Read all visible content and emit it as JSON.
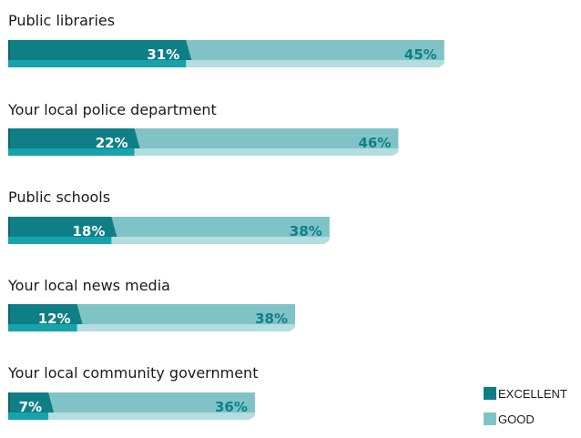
{
  "chart_data": {
    "type": "bar",
    "orientation": "horizontal",
    "stacked": true,
    "categories": [
      "Public libraries",
      "Your local police department",
      "Public schools",
      "Your local news media",
      "Your local community government"
    ],
    "series": [
      {
        "name": "EXCELLENT",
        "values": [
          31,
          22,
          18,
          12,
          7
        ],
        "labels": [
          "31%",
          "22%",
          "18%",
          "12%",
          "7%"
        ]
      },
      {
        "name": "GOOD",
        "values": [
          45,
          46,
          38,
          38,
          36
        ],
        "labels": [
          "45%",
          "46%",
          "38%",
          "38%",
          "36%"
        ]
      }
    ],
    "legend_position": "bottom-right",
    "grid": false
  },
  "colors": {
    "excellent": "#0f7f86",
    "excellent_dark": "#0b656b",
    "excellent_light": "#17a3ab",
    "good": "#7fc3c7",
    "good_light": "#b3dde0",
    "excellent_text": "#ffffff",
    "good_text": "#0f7f86"
  }
}
